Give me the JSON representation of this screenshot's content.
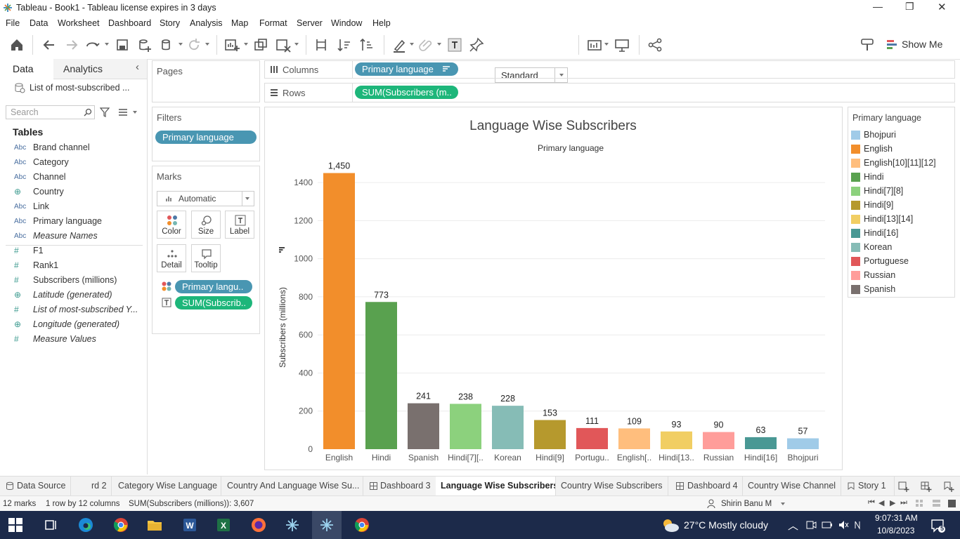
{
  "window": {
    "title": "Tableau - Book1 - Tableau license expires in 3 days",
    "controls": {
      "minimize": "—",
      "maximize": "❐",
      "close": "✕"
    }
  },
  "menu": [
    "File",
    "Data",
    "Worksheet",
    "Dashboard",
    "Story",
    "Analysis",
    "Map",
    "Format",
    "Server",
    "Window",
    "Help"
  ],
  "toolbar": {
    "fit_value": "Standard",
    "show_me": "Show Me"
  },
  "data_pane": {
    "tabs": [
      "Data",
      "Analytics"
    ],
    "datasource": "List of most-subscribed ...",
    "search_placeholder": "Search",
    "tables_heading": "Tables",
    "dimensions": [
      {
        "type": "Abc",
        "name": "Brand channel",
        "italic": false
      },
      {
        "type": "Abc",
        "name": "Category",
        "italic": false
      },
      {
        "type": "Abc",
        "name": "Channel",
        "italic": false
      },
      {
        "type": "geo",
        "name": "Country",
        "italic": false
      },
      {
        "type": "Abc",
        "name": "Link",
        "italic": false
      },
      {
        "type": "Abc",
        "name": "Primary language",
        "italic": false
      },
      {
        "type": "Abc",
        "name": "Measure Names",
        "italic": true
      }
    ],
    "measures": [
      {
        "type": "#",
        "name": "F1",
        "italic": false
      },
      {
        "type": "#",
        "name": "Rank1",
        "italic": false
      },
      {
        "type": "#",
        "name": "Subscribers (millions)",
        "italic": false
      },
      {
        "type": "geo",
        "name": "Latitude (generated)",
        "italic": true
      },
      {
        "type": "#",
        "name": "List of most-subscribed Y...",
        "italic": true
      },
      {
        "type": "geo",
        "name": "Longitude (generated)",
        "italic": true
      },
      {
        "type": "#",
        "name": "Measure Values",
        "italic": true
      }
    ]
  },
  "shelves": {
    "pages_label": "Pages",
    "filters_label": "Filters",
    "filter_pill": "Primary language",
    "marks_label": "Marks",
    "mark_type": "Automatic",
    "mark_buttons": [
      "Color",
      "Size",
      "Label",
      "Detail",
      "Tooltip"
    ],
    "mark_pills": [
      "Primary langu..",
      "SUM(Subscrib.."
    ],
    "columns_label": "Columns",
    "columns_pill": "Primary language",
    "rows_label": "Rows",
    "rows_pill": "SUM(Subscribers (m.."
  },
  "legend": {
    "title": "Primary language",
    "items": [
      {
        "label": "Bhojpuri",
        "color": "#a0cbe8"
      },
      {
        "label": "English",
        "color": "#f28e2b"
      },
      {
        "label": "English[10][11][12]",
        "color": "#ffbe7d"
      },
      {
        "label": "Hindi",
        "color": "#59a14f"
      },
      {
        "label": "Hindi[7][8]",
        "color": "#8cd17d"
      },
      {
        "label": "Hindi[9]",
        "color": "#b6992d"
      },
      {
        "label": "Hindi[13][14]",
        "color": "#f1ce63"
      },
      {
        "label": "Hindi[16]",
        "color": "#499894"
      },
      {
        "label": "Korean",
        "color": "#86bcb6"
      },
      {
        "label": "Portuguese",
        "color": "#e15759"
      },
      {
        "label": "Russian",
        "color": "#ff9d9a"
      },
      {
        "label": "Spanish",
        "color": "#79706e"
      }
    ]
  },
  "chart_data": {
    "type": "bar",
    "title": "Language Wise Subscribers",
    "header": "Primary language",
    "ylabel": "Subscribers (millions)",
    "xlabel": "",
    "ylim": [
      0,
      1500
    ],
    "yticks": [
      0,
      200,
      400,
      600,
      800,
      1000,
      1200,
      1400
    ],
    "categories": [
      "English",
      "Hindi",
      "Spanish",
      "Hindi[7][..",
      "Korean",
      "Hindi[9]",
      "Portugu..",
      "English[..",
      "Hindi[13..",
      "Russian",
      "Hindi[16]",
      "Bhojpuri"
    ],
    "values": [
      1450,
      773,
      241,
      238,
      228,
      153,
      111,
      109,
      93,
      90,
      63,
      57
    ],
    "value_labels": [
      "1,450",
      "773",
      "241",
      "238",
      "228",
      "153",
      "111",
      "109",
      "93",
      "90",
      "63",
      "57"
    ],
    "colors": [
      "#f28e2b",
      "#59a14f",
      "#79706e",
      "#8cd17d",
      "#86bcb6",
      "#b6992d",
      "#e15759",
      "#ffbe7d",
      "#f1ce63",
      "#ff9d9a",
      "#499894",
      "#a0cbe8"
    ],
    "grid": true
  },
  "sheet_tabs": [
    {
      "label": "Data Source",
      "active": false,
      "icon": "datasource"
    },
    {
      "label": "rd 2",
      "active": false,
      "icon": ""
    },
    {
      "label": "Category Wise Language",
      "active": false,
      "icon": ""
    },
    {
      "label": "Country And Language Wise Su...",
      "active": false,
      "icon": ""
    },
    {
      "label": "Dashboard 3",
      "active": false,
      "icon": "dashboard"
    },
    {
      "label": "Language Wise Subscribers",
      "active": true,
      "icon": ""
    },
    {
      "label": "Country Wise Subscribers",
      "active": false,
      "icon": ""
    },
    {
      "label": "Dashboard 4",
      "active": false,
      "icon": "dashboard"
    },
    {
      "label": "Country Wise Channel",
      "active": false,
      "icon": ""
    },
    {
      "label": "Story 1",
      "active": false,
      "icon": "story"
    }
  ],
  "status": {
    "marks": "12 marks",
    "rows_cols": "1 row by 12 columns",
    "sum": "SUM(Subscribers (millions)): 3,607",
    "user": "Shirin Banu M"
  },
  "taskbar": {
    "weather": "27°C  Mostly cloudy",
    "time": "9:07:31 AM",
    "date": "10/8/2023",
    "notifications": "5"
  }
}
